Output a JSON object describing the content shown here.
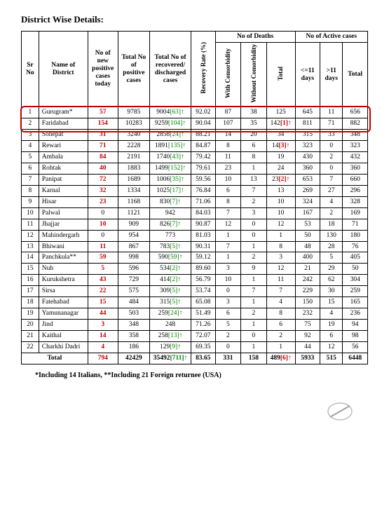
{
  "title": "District Wise Details:",
  "columns": {
    "sr": "Sr No",
    "district": "Name of District",
    "new": "No of new positive cases today",
    "total_pos": "Total No of positive cases",
    "recovered": "Total No of recovered/ discharged cases",
    "rate": "Recovery Rate (%)",
    "deaths": "No of Deaths",
    "with_c": "With Comorbidity",
    "without_c": "Without Comorbidity",
    "d_total": "Total",
    "active": "No of Active cases",
    "le11": "<=11 days",
    "gt11": ">11 days",
    "a_total": "Total"
  },
  "rows": [
    {
      "sr": "1",
      "district": "Gurugram*",
      "new": "57",
      "total_pos": "9785",
      "recovered": "9004",
      "rec_br": "[63]",
      "rate": "92.02",
      "wc": "87",
      "woc": "38",
      "dt": "125",
      "le": "645",
      "gt": "11",
      "at": "656",
      "hl": true
    },
    {
      "sr": "2",
      "district": "Faridabad",
      "new": "154",
      "total_pos": "10283",
      "recovered": "9259",
      "rec_br": "[104]",
      "rate": "90.04",
      "wc": "107",
      "woc": "35",
      "dt": "142",
      "dt_br": "[1]",
      "dt_red": true,
      "le": "811",
      "gt": "71",
      "at": "882",
      "hl": true
    },
    {
      "sr": "3",
      "district": "Sonepat",
      "new": "31",
      "total_pos": "3240",
      "recovered": "2858",
      "rec_br": "[24]",
      "rate": "88.21",
      "wc": "14",
      "woc": "20",
      "dt": "34",
      "le": "315",
      "gt": "33",
      "at": "348"
    },
    {
      "sr": "4",
      "district": "Rewari",
      "new": "71",
      "total_pos": "2228",
      "recovered": "1891",
      "rec_br": "[135]",
      "rate": "84.87",
      "wc": "8",
      "woc": "6",
      "dt": "14",
      "dt_br": "[3]",
      "dt_red": true,
      "le": "323",
      "gt": "0",
      "at": "323"
    },
    {
      "sr": "5",
      "district": "Ambala",
      "new": "84",
      "total_pos": "2191",
      "recovered": "1740",
      "rec_br": "[43]",
      "rate": "79.42",
      "wc": "11",
      "woc": "8",
      "dt": "19",
      "le": "430",
      "gt": "2",
      "at": "432"
    },
    {
      "sr": "6",
      "district": "Rohtak",
      "new": "40",
      "total_pos": "1883",
      "recovered": "1499",
      "rec_br": "[152]",
      "rate": "79.61",
      "wc": "23",
      "woc": "1",
      "dt": "24",
      "le": "360",
      "gt": "0",
      "at": "360"
    },
    {
      "sr": "7",
      "district": "Panipat",
      "new": "72",
      "total_pos": "1689",
      "recovered": "1006",
      "rec_br": "[35]",
      "rate": "59.56",
      "wc": "10",
      "woc": "13",
      "dt": "23",
      "dt_br": "[2]",
      "dt_red": true,
      "le": "653",
      "gt": "7",
      "at": "660"
    },
    {
      "sr": "8",
      "district": "Karnal",
      "new": "32",
      "total_pos": "1334",
      "recovered": "1025",
      "rec_br": "[17]",
      "rate": "76.84",
      "wc": "6",
      "woc": "7",
      "dt": "13",
      "le": "269",
      "gt": "27",
      "at": "296"
    },
    {
      "sr": "9",
      "district": "Hisar",
      "new": "23",
      "total_pos": "1168",
      "recovered": "830",
      "rec_br": "[7]",
      "rate": "71.06",
      "wc": "8",
      "woc": "2",
      "dt": "10",
      "le": "324",
      "gt": "4",
      "at": "328"
    },
    {
      "sr": "10",
      "district": "Palwal",
      "new": "0",
      "new_black": true,
      "total_pos": "1121",
      "recovered": "942",
      "rate": "84.03",
      "wc": "7",
      "woc": "3",
      "dt": "10",
      "le": "167",
      "gt": "2",
      "at": "169"
    },
    {
      "sr": "11",
      "district": "Jhajjar",
      "new": "10",
      "total_pos": "909",
      "recovered": "826",
      "rec_br": "[7]",
      "rate": "90.87",
      "wc": "12",
      "woc": "0",
      "dt": "12",
      "le": "53",
      "gt": "18",
      "at": "71"
    },
    {
      "sr": "12",
      "district": "Mahindergarh",
      "new": "0",
      "new_black": true,
      "total_pos": "954",
      "recovered": "773",
      "rate": "81.03",
      "wc": "1",
      "woc": "0",
      "dt": "1",
      "le": "50",
      "gt": "130",
      "at": "180"
    },
    {
      "sr": "13",
      "district": "Bhiwani",
      "new": "11",
      "total_pos": "867",
      "recovered": "783",
      "rec_br": "[5]",
      "rate": "90.31",
      "wc": "7",
      "woc": "1",
      "dt": "8",
      "le": "48",
      "gt": "28",
      "at": "76"
    },
    {
      "sr": "14",
      "district": "Panchkula**",
      "new": "59",
      "total_pos": "998",
      "recovered": "590",
      "rec_br": "[59]",
      "rate": "59.12",
      "wc": "1",
      "woc": "2",
      "dt": "3",
      "le": "400",
      "gt": "5",
      "at": "405"
    },
    {
      "sr": "15",
      "district": "Nuh",
      "new": "5",
      "total_pos": "596",
      "recovered": "534",
      "rec_br": "[2]",
      "rate": "89.60",
      "wc": "3",
      "woc": "9",
      "dt": "12",
      "le": "21",
      "gt": "29",
      "at": "50"
    },
    {
      "sr": "16",
      "district": "Kurukshetra",
      "new": "43",
      "total_pos": "729",
      "recovered": "414",
      "rec_br": "[2]",
      "rate": "56.79",
      "wc": "10",
      "woc": "1",
      "dt": "11",
      "le": "242",
      "gt": "62",
      "at": "304"
    },
    {
      "sr": "17",
      "district": "Sirsa",
      "new": "22",
      "total_pos": "575",
      "recovered": "309",
      "rec_br": "[5]",
      "rate": "53.74",
      "wc": "0",
      "woc": "7",
      "dt": "7",
      "le": "229",
      "gt": "30",
      "at": "259"
    },
    {
      "sr": "18",
      "district": "Fatehabad",
      "new": "15",
      "total_pos": "484",
      "recovered": "315",
      "rec_br": "[5]",
      "rate": "65.08",
      "wc": "3",
      "woc": "1",
      "dt": "4",
      "le": "150",
      "gt": "15",
      "at": "165"
    },
    {
      "sr": "19",
      "district": "Yamunanagar",
      "new": "44",
      "total_pos": "503",
      "recovered": "259",
      "rec_br": "[24]",
      "rate": "51.49",
      "wc": "6",
      "woc": "2",
      "dt": "8",
      "le": "232",
      "gt": "4",
      "at": "236"
    },
    {
      "sr": "20",
      "district": "Jind",
      "new": "3",
      "total_pos": "348",
      "recovered": "248",
      "rate": "71.26",
      "wc": "5",
      "woc": "1",
      "dt": "6",
      "le": "75",
      "gt": "19",
      "at": "94"
    },
    {
      "sr": "21",
      "district": "Kaithal",
      "new": "14",
      "total_pos": "358",
      "recovered": "258",
      "rec_br": "[13]",
      "rate": "72.07",
      "wc": "2",
      "woc": "0",
      "dt": "2",
      "le": "92",
      "gt": "6",
      "at": "98"
    },
    {
      "sr": "22",
      "district": "Charkhi Dadri",
      "new": "4",
      "total_pos": "186",
      "recovered": "129",
      "rec_br": "[9]",
      "rate": "69.35",
      "wc": "0",
      "woc": "1",
      "dt": "1",
      "le": "44",
      "gt": "12",
      "at": "56"
    }
  ],
  "total": {
    "label": "Total",
    "new": "794",
    "total_pos": "42429",
    "recovered": "35492",
    "rec_br": "[711]",
    "rate": "83.65",
    "wc": "331",
    "woc": "158",
    "dt": "489",
    "dt_br": "[6]",
    "le": "5933",
    "gt": "515",
    "at": "6448"
  },
  "footnote": "*Including 14 Italians, **Including 21 Foreign returnee (USA)"
}
